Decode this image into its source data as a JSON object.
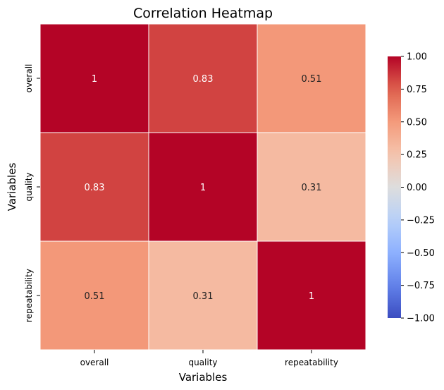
{
  "chart_data": {
    "type": "heatmap",
    "title": "Correlation Heatmap",
    "xlabel": "Variables",
    "ylabel": "Variables",
    "x_categories": [
      "overall",
      "quality",
      "repeatability"
    ],
    "y_categories": [
      "overall",
      "quality",
      "repeatability"
    ],
    "values": [
      [
        1,
        0.83,
        0.51
      ],
      [
        0.83,
        1,
        0.31
      ],
      [
        0.51,
        0.31,
        1
      ]
    ],
    "cell_labels": [
      [
        "1",
        "0.83",
        "0.51"
      ],
      [
        "0.83",
        "1",
        "0.31"
      ],
      [
        "0.51",
        "0.31",
        "1"
      ]
    ],
    "colormap": "coolwarm",
    "vmin": -1.0,
    "vmax": 1.0,
    "colorbar_ticks": [
      "1.00",
      "0.75",
      "0.50",
      "0.25",
      "0.00",
      "−0.25",
      "−0.50",
      "−0.75",
      "−1.00"
    ],
    "colorbar_tick_values": [
      1.0,
      0.75,
      0.5,
      0.25,
      0.0,
      -0.25,
      -0.5,
      -0.75,
      -1.0
    ],
    "colorbar_position": "right",
    "grid_line_color": "#ffffff"
  }
}
